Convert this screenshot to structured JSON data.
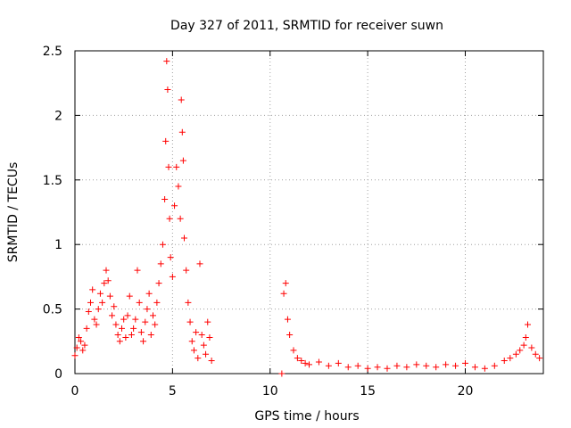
{
  "chart_data": {
    "type": "scatter",
    "title": "Day 327 of 2011, SRMTID for receiver suwn",
    "xlabel": "GPS time / hours",
    "ylabel": "SRMTID / TECUs",
    "xlim": [
      0,
      24
    ],
    "ylim": [
      0,
      2.5
    ],
    "xticks": [
      0,
      5,
      10,
      15,
      20
    ],
    "xtick_labels": [
      "0",
      "5",
      "10",
      "15",
      "20"
    ],
    "yticks": [
      0,
      0.5,
      1,
      1.5,
      2,
      2.5
    ],
    "ytick_labels": [
      "0",
      "0.5",
      "1",
      "1.5",
      "2",
      "2.5"
    ],
    "grid": true,
    "marker": "+",
    "series": [
      {
        "name": "SRMTID",
        "color": "#ff0000",
        "x": [
          0.0,
          0.1,
          0.2,
          0.3,
          0.4,
          0.5,
          0.6,
          0.7,
          0.8,
          0.9,
          1.0,
          1.1,
          1.2,
          1.3,
          1.4,
          1.5,
          1.6,
          1.7,
          1.8,
          1.9,
          2.0,
          2.1,
          2.2,
          2.3,
          2.4,
          2.5,
          2.6,
          2.7,
          2.8,
          2.9,
          3.0,
          3.1,
          3.2,
          3.3,
          3.4,
          3.5,
          3.6,
          3.7,
          3.8,
          3.9,
          4.0,
          4.1,
          4.2,
          4.3,
          4.4,
          4.5,
          4.6,
          4.65,
          4.7,
          4.75,
          4.8,
          4.85,
          4.9,
          5.0,
          5.1,
          5.2,
          5.3,
          5.4,
          5.45,
          5.5,
          5.55,
          5.6,
          5.7,
          5.8,
          5.9,
          6.0,
          6.1,
          6.2,
          6.3,
          6.4,
          6.5,
          6.6,
          6.7,
          6.8,
          6.9,
          7.0,
          10.6,
          10.7,
          10.8,
          10.9,
          11.0,
          11.2,
          11.4,
          11.6,
          11.8,
          12.0,
          12.5,
          13.0,
          13.5,
          14.0,
          14.5,
          15.0,
          15.5,
          16.0,
          16.5,
          17.0,
          17.5,
          18.0,
          18.5,
          19.0,
          19.5,
          20.0,
          20.5,
          21.0,
          21.5,
          22.0,
          22.3,
          22.6,
          22.8,
          23.0,
          23.1,
          23.2,
          23.4,
          23.6,
          23.8
        ],
        "y": [
          0.14,
          0.2,
          0.28,
          0.25,
          0.18,
          0.22,
          0.35,
          0.48,
          0.55,
          0.65,
          0.42,
          0.38,
          0.5,
          0.62,
          0.55,
          0.7,
          0.8,
          0.72,
          0.6,
          0.45,
          0.52,
          0.38,
          0.3,
          0.25,
          0.35,
          0.42,
          0.28,
          0.45,
          0.6,
          0.3,
          0.35,
          0.42,
          0.8,
          0.55,
          0.32,
          0.25,
          0.4,
          0.5,
          0.62,
          0.3,
          0.45,
          0.38,
          0.55,
          0.7,
          0.85,
          1.0,
          1.35,
          1.8,
          2.42,
          2.2,
          1.6,
          1.2,
          0.9,
          0.75,
          1.3,
          1.6,
          1.45,
          1.2,
          2.12,
          1.87,
          1.65,
          1.05,
          0.8,
          0.55,
          0.4,
          0.25,
          0.18,
          0.32,
          0.12,
          0.85,
          0.3,
          0.22,
          0.15,
          0.4,
          0.28,
          0.1,
          0.0,
          0.62,
          0.7,
          0.42,
          0.3,
          0.18,
          0.12,
          0.1,
          0.08,
          0.07,
          0.09,
          0.06,
          0.08,
          0.05,
          0.06,
          0.04,
          0.05,
          0.04,
          0.06,
          0.05,
          0.07,
          0.06,
          0.05,
          0.07,
          0.06,
          0.08,
          0.05,
          0.04,
          0.06,
          0.1,
          0.12,
          0.15,
          0.18,
          0.22,
          0.28,
          0.38,
          0.2,
          0.15,
          0.12
        ]
      }
    ]
  }
}
